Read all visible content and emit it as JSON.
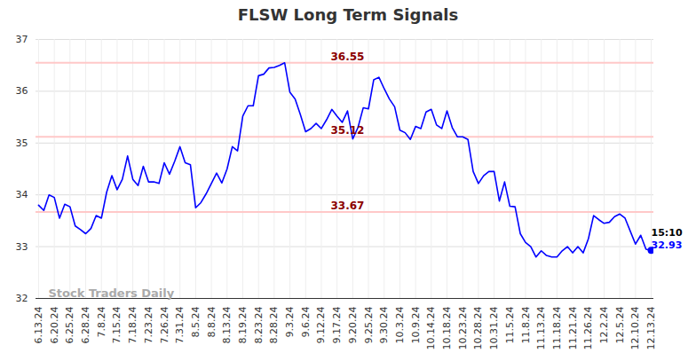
{
  "chart_data": {
    "type": "line",
    "title": "FLSW Long Term Signals",
    "categories": [
      "6.13.24",
      null,
      null,
      "6.20.24",
      null,
      null,
      "6.25.24",
      null,
      null,
      "6.28.24",
      null,
      null,
      "7.8.24",
      null,
      null,
      "7.15.24",
      null,
      null,
      "7.18.24",
      null,
      null,
      "7.23.24",
      null,
      null,
      "7.26.24",
      null,
      null,
      "7.31.24",
      null,
      null,
      "8.5.24",
      null,
      null,
      "8.8.24",
      null,
      null,
      "8.13.24",
      null,
      null,
      "8.19.24",
      null,
      null,
      "8.23.24",
      null,
      null,
      "8.28.24",
      null,
      null,
      "9.3.24",
      null,
      null,
      "9.6.24",
      null,
      null,
      "9.12.24",
      null,
      null,
      "9.17.24",
      null,
      null,
      "9.20.24",
      null,
      null,
      "9.25.24",
      null,
      null,
      "9.30.24",
      null,
      null,
      "10.3.24",
      null,
      null,
      "10.9.24",
      null,
      null,
      "10.14.24",
      null,
      null,
      "10.18.24",
      null,
      null,
      "10.23.24",
      null,
      null,
      "10.28.24",
      null,
      null,
      "10.31.24",
      null,
      null,
      "11.5.24",
      null,
      null,
      "11.8.24",
      null,
      null,
      "11.13.24",
      null,
      null,
      "11.18.24",
      null,
      null,
      "11.21.24",
      null,
      null,
      "11.26.24",
      null,
      null,
      "12.2.24",
      null,
      null,
      "12.5.24",
      null,
      null,
      "12.10.24",
      null,
      null,
      "12.13.24"
    ],
    "values": [
      33.8,
      33.7,
      34.0,
      33.95,
      33.55,
      33.82,
      33.77,
      33.4,
      33.33,
      33.25,
      33.35,
      33.6,
      33.55,
      34.05,
      34.37,
      34.1,
      34.3,
      34.75,
      34.3,
      34.18,
      34.55,
      34.25,
      34.25,
      34.22,
      34.62,
      34.4,
      34.65,
      34.93,
      34.62,
      34.58,
      33.75,
      33.85,
      34.02,
      34.22,
      34.42,
      34.23,
      34.5,
      34.93,
      34.85,
      35.52,
      35.72,
      35.72,
      36.3,
      36.33,
      36.45,
      36.46,
      36.5,
      36.55,
      35.98,
      35.85,
      35.55,
      35.22,
      35.28,
      35.38,
      35.28,
      35.45,
      35.65,
      35.52,
      35.4,
      35.62,
      35.08,
      35.3,
      35.68,
      35.66,
      36.22,
      36.27,
      36.05,
      35.85,
      35.7,
      35.25,
      35.2,
      35.07,
      35.32,
      35.28,
      35.6,
      35.65,
      35.35,
      35.28,
      35.62,
      35.3,
      35.12,
      35.12,
      35.07,
      34.45,
      34.22,
      34.37,
      34.45,
      34.45,
      33.88,
      34.25,
      33.78,
      33.77,
      33.25,
      33.08,
      33.0,
      32.8,
      32.92,
      32.83,
      32.8,
      32.8,
      32.92,
      33.0,
      32.88,
      33.0,
      32.88,
      33.15,
      33.6,
      33.52,
      33.45,
      33.47,
      33.58,
      33.63,
      33.55,
      33.3,
      33.05,
      33.22,
      32.95,
      32.93
    ],
    "color": "#0000ff",
    "ylim": [
      32,
      37
    ],
    "yticks": [
      32,
      33,
      34,
      35,
      36,
      37
    ],
    "grid": true,
    "reference_lines": [
      36.55,
      35.12,
      33.67
    ],
    "last_point_label": "15:10",
    "watermark": "Stock Traders Daily"
  }
}
